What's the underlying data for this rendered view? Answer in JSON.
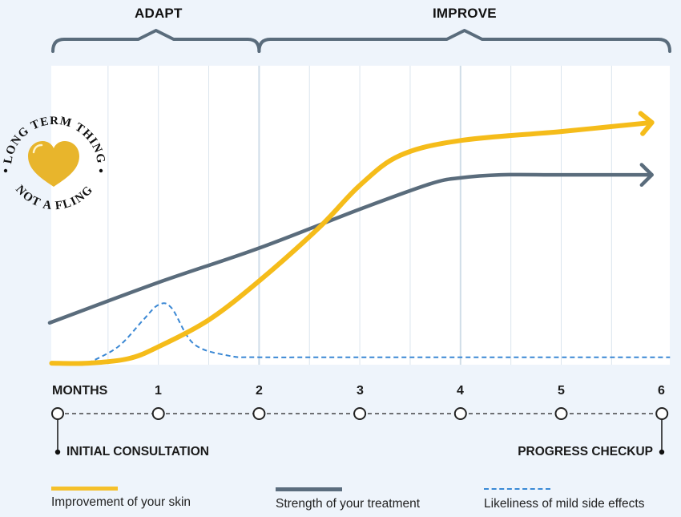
{
  "phases": [
    {
      "label": "ADAPT",
      "from_month": 0,
      "to_month": 2
    },
    {
      "label": "IMPROVE",
      "from_month": 2,
      "to_month": 6
    }
  ],
  "badge": {
    "top_text": "LONG TERM THING",
    "bottom_text": "NOT A FLING",
    "icon": "heart-icon",
    "heart_color": "#e8b52c"
  },
  "timeline": {
    "axis_label": "MONTHS",
    "ticks": [
      "1",
      "2",
      "3",
      "4",
      "5",
      "6"
    ],
    "start_callout": "INITIAL CONSULTATION",
    "end_callout": "PROGRESS CHECKUP"
  },
  "legend": [
    {
      "label": "Improvement of your skin",
      "color": "#f5c02a",
      "style": "solid"
    },
    {
      "label": "Strength of your treatment",
      "color": "#5b6d7e",
      "style": "solid"
    },
    {
      "label": "Likeliness of mild side effects",
      "color": "#3a8ad6",
      "style": "dashed"
    }
  ],
  "colors": {
    "skin": "#f5bc1a",
    "treatment": "#5a6c7c",
    "side_effects": "#3b88d4",
    "brace": "#5a6c7c",
    "grid": "#dbe5ee",
    "grid_major": "#cfdde8",
    "plot_bg": "#ffffff",
    "page_bg": "#eef4fb"
  },
  "chart_data": {
    "type": "line",
    "title": "",
    "xlabel": "MONTHS",
    "ylabel": "",
    "xlim": [
      -0.07,
      6.08
    ],
    "ylim": [
      0,
      100
    ],
    "x_ticks": [
      0,
      1,
      2,
      3,
      4,
      5,
      6
    ],
    "x_tick_labels": [
      "MONTHS",
      "1",
      "2",
      "3",
      "4",
      "5",
      "6"
    ],
    "grid": "vertical",
    "legend_position": "bottom",
    "series": [
      {
        "name": "Improvement of your skin",
        "key": "skin",
        "arrow_end": true,
        "x": [
          -0.06,
          0.3,
          0.7,
          1.0,
          1.5,
          2.0,
          2.6,
          3.0,
          3.4,
          4.0,
          5.0,
          5.9
        ],
        "y": [
          0.5,
          0.5,
          2,
          6,
          15,
          28,
          46,
          60,
          70,
          75,
          78,
          81
        ]
      },
      {
        "name": "Strength of your treatment",
        "key": "treatment",
        "arrow_end": true,
        "x": [
          -0.08,
          1.0,
          2.0,
          3.0,
          3.7,
          4.0,
          4.4,
          5.0,
          5.9
        ],
        "y": [
          14,
          27.5,
          39,
          52,
          60.5,
          62.5,
          63.5,
          63.5,
          63.5
        ]
      },
      {
        "name": "Likeliness of mild side effects",
        "key": "side_effects",
        "arrow_end": false,
        "x": [
          0.3,
          0.6,
          0.85,
          1.0,
          1.13,
          1.35,
          1.7,
          2.0,
          3.0,
          6.08
        ],
        "y": [
          0.5,
          6,
          15,
          20,
          19,
          7,
          3,
          2.5,
          2.5,
          2.5
        ]
      }
    ]
  }
}
